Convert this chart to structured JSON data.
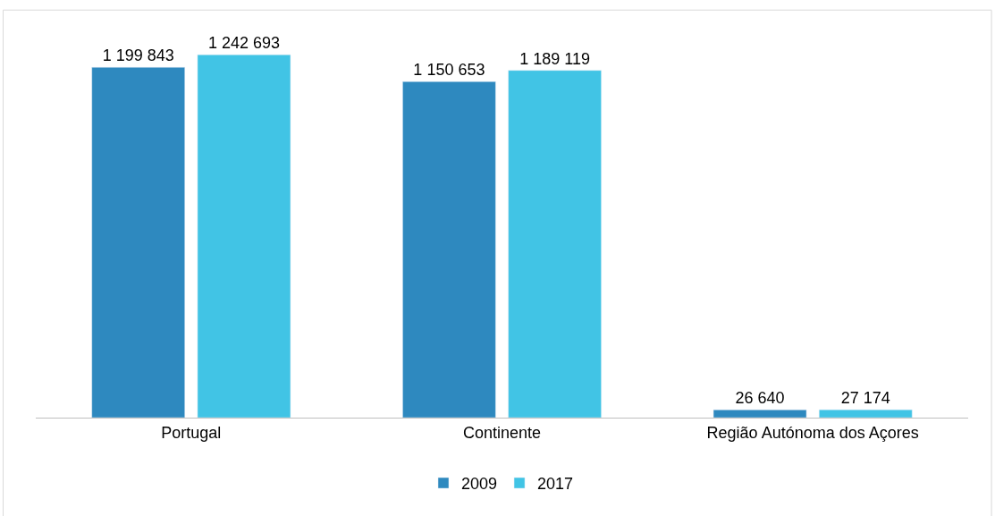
{
  "chart_data": {
    "type": "bar",
    "categories": [
      "Portugal",
      "Continente",
      "Região Autónoma dos Açores"
    ],
    "series": [
      {
        "name": "2009",
        "color": "#2e89bf",
        "values": [
          1199843,
          1150653,
          26640
        ],
        "value_labels": [
          "1 199 843",
          "1 150 653",
          "26 640"
        ]
      },
      {
        "name": "2017",
        "color": "#41c4e5",
        "values": [
          1242693,
          1189119,
          27174
        ],
        "value_labels": [
          "1 242 693",
          "1 189 119",
          "27 174"
        ]
      }
    ],
    "legend": "bottom"
  }
}
